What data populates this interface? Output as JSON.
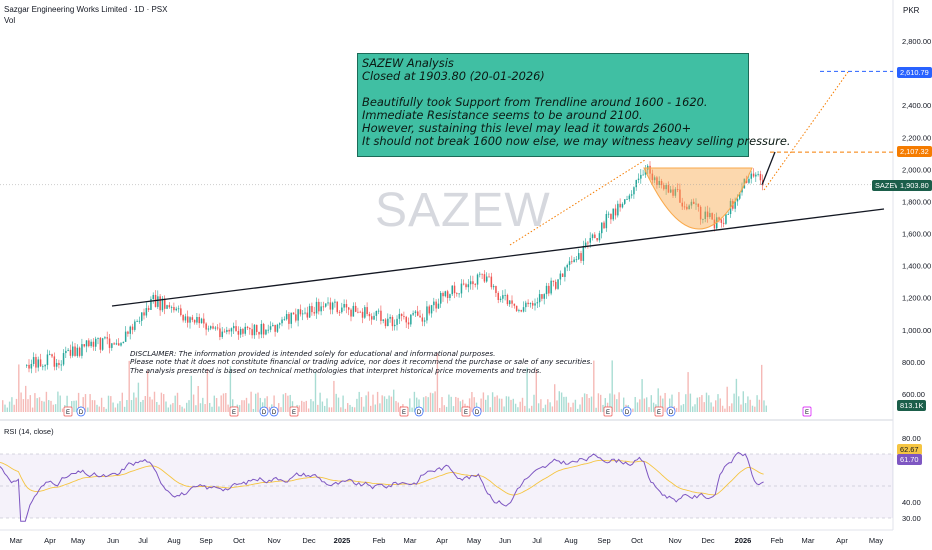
{
  "header": {
    "title": "Sazgar Engineering Works Limited · 1D · PSX",
    "volume_label": "Vol",
    "currency": "PKR"
  },
  "symbol": "SAZEW",
  "watermark": "SAZEW",
  "annotation": {
    "lines": [
      "SAZEW Analysis",
      "Closed at 1903.80 (20-01-2026)",
      "",
      "Beautifully took Support from Trendline around 1600 - 1620.",
      "Immediate Resistance seems to be around 2100.",
      "However, sustaining this level may lead it towards 2600+",
      "It should not break 1600 now else, we may witness heavy selling pressure."
    ]
  },
  "disclaimer": {
    "lines": [
      "DISCLAIMER: The information provided is intended solely for educational and informational purposes.",
      "Please note that it does not constitute financial or trading advice, nor does it recommend the purchase or sale of any securities.",
      "The analysis presented is based on technical methodologies that interpret historical price movements and trends."
    ]
  },
  "price_tags": {
    "target": "2,610.79",
    "resistance": "2,107.32",
    "last_symbol": "SAZEW",
    "last": "1,903.80",
    "volume": "813.1K",
    "rsi": "62.67",
    "rsi_ma": "61.70"
  },
  "rsi_label": "RSI (14, close)",
  "colors": {
    "up": "#26a69a",
    "down": "#ef5350",
    "annotation_bg": "#40bfa3",
    "target_line": "#2962ff",
    "resistance_line": "#f57c00",
    "rsi_line": "#7e57c2",
    "rsi_ma": "#f5c542",
    "cup": "#f9a94b"
  },
  "chart_data": [
    {
      "type": "candlestick",
      "title": "Sazgar Engineering Works Limited · 1D · PSX",
      "x_ticks": [
        "Mar",
        "Apr",
        "May",
        "Jun",
        "Jul",
        "Aug",
        "Sep",
        "Oct",
        "Nov",
        "Dec",
        "2025",
        "Feb",
        "Mar",
        "Apr",
        "May",
        "Jun",
        "Jul",
        "Aug",
        "Sep",
        "Oct",
        "Nov",
        "Dec",
        "2026",
        "Feb",
        "Mar",
        "Apr",
        "May"
      ],
      "y_ticks": [
        "2,800.00",
        "2,600.00",
        "2,400.00",
        "2,200.00",
        "2,000.00",
        "1,800.00",
        "1,600.00",
        "1,400.00",
        "1,200.00",
        "1,000.00",
        "800.00",
        "600.00"
      ],
      "ylim": [
        600,
        2800
      ],
      "close_path": [
        [
          "Mar",
          780
        ],
        [
          "Apr",
          820
        ],
        [
          "May",
          900
        ],
        [
          "Jun",
          950
        ],
        [
          "Jul",
          1180
        ],
        [
          "Aug",
          1080
        ],
        [
          "Sep",
          1000
        ],
        [
          "Oct",
          980
        ],
        [
          "Nov",
          1050
        ],
        [
          "Dec",
          1150
        ],
        [
          "2025",
          1120
        ],
        [
          "Feb",
          1060
        ],
        [
          "Mar",
          1080
        ],
        [
          "Apr",
          1250
        ],
        [
          "May",
          1320
        ],
        [
          "Jun",
          1110
        ],
        [
          "Jul",
          1240
        ],
        [
          "Aug",
          1470
        ],
        [
          "Sep",
          1750
        ],
        [
          "Oct",
          1990
        ],
        [
          "Nov",
          1790
        ],
        [
          "Dec",
          1650
        ],
        [
          "2026",
          1980
        ],
        [
          "Jan 20",
          1903.8
        ]
      ],
      "trendline": {
        "from": [
          "Jun",
          1120
        ],
        "to": [
          "Mar 2026",
          1780
        ]
      },
      "levels": {
        "resistance": 2107.32,
        "target": 2610.79,
        "last_close": 1903.8
      },
      "volume_last": "813.1K"
    },
    {
      "type": "line",
      "title": "RSI (14, close)",
      "y_ticks": [
        "80.00",
        "40.00",
        "30.00"
      ],
      "ylim": [
        25,
        90
      ],
      "bands": [
        70,
        30
      ],
      "last_rsi": 62.67,
      "last_ma": 61.7
    }
  ]
}
